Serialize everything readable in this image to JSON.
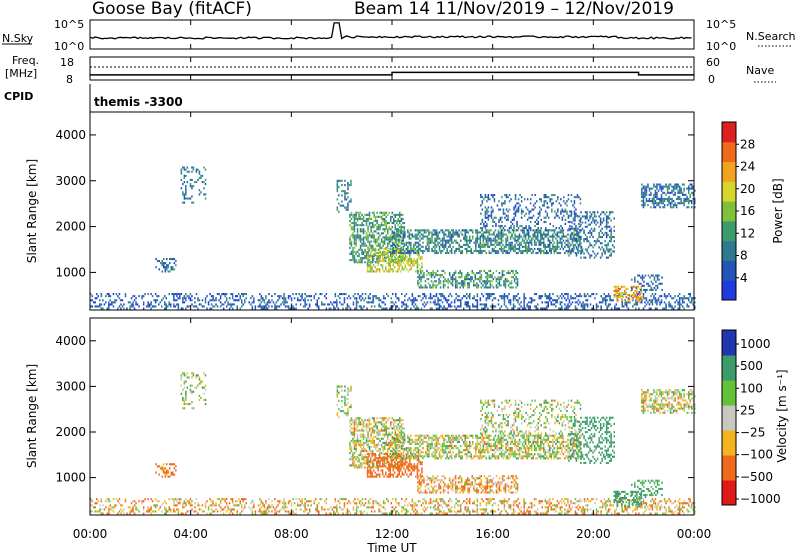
{
  "header": {
    "station": "Goose Bay (fitACF)",
    "beam_date": "Beam 14   11/Nov/2019 – 12/Nov/2019"
  },
  "nsky_panel": {
    "label": "N.Sky",
    "right_label": "N.Search",
    "yticks_left": [
      "10^5",
      "10^0"
    ],
    "yticks_right": [
      "10^5",
      "10^0"
    ]
  },
  "freq_panel": {
    "label_line1": "Freq.",
    "label_line2": "[MHz]",
    "yticks_left": [
      "18",
      "8"
    ],
    "yticks_right": [
      "60",
      "0"
    ],
    "right_label": "Nave"
  },
  "cpid_panel": {
    "label": "CPID",
    "program": "themis -3300"
  },
  "power_panel": {
    "ylabel": "Slant Range [km]",
    "cbar_label": "Power [dB]",
    "cbar_ticks": [
      "28",
      "24",
      "20",
      "16",
      "12",
      "8",
      "4"
    ]
  },
  "velocity_panel": {
    "ylabel": "Slant Range [km]",
    "cbar_label": "Velocity [m s⁻¹]",
    "cbar_ticks": [
      "1000",
      "500",
      "100",
      "25",
      "−25",
      "−100",
      "−500",
      "−1000"
    ]
  },
  "xaxis": {
    "label": "Time UT",
    "ticks": [
      "00:00",
      "04:00",
      "08:00",
      "12:00",
      "16:00",
      "20:00",
      "00:00"
    ]
  },
  "chart_data": {
    "type": "heatmap",
    "title": "Goose Bay (fitACF)   Beam 14   11/Nov/2019 – 12/Nov/2019",
    "xlabel": "Time UT",
    "ylabel": "Slant Range [km]",
    "x_ticks": [
      "00:00",
      "04:00",
      "08:00",
      "12:00",
      "16:00",
      "20:00",
      "00:00"
    ],
    "xlim_hours": [
      0,
      24
    ],
    "ylim": [
      180,
      4500
    ],
    "y_ticks": [
      1000,
      2000,
      3000,
      4000
    ],
    "freq_mhz_segments": [
      {
        "start_h": 0,
        "end_h": 12,
        "value": 10.2
      },
      {
        "start_h": 12,
        "end_h": 21.8,
        "value": 11.3
      },
      {
        "start_h": 21.8,
        "end_h": 24,
        "value": 10.2
      }
    ],
    "power_scale": {
      "min": 0,
      "max": 32,
      "unit": "dB"
    },
    "velocity_scale": {
      "min": -1000,
      "max": 1000,
      "unit": "m/s"
    },
    "echo_regions": [
      {
        "t0": 0.0,
        "t1": 24.0,
        "r0": 190,
        "r1": 550,
        "power": 6,
        "velocity": -60,
        "density": 0.35
      },
      {
        "t0": 3.6,
        "t1": 4.6,
        "r0": 2500,
        "r1": 3300,
        "power": 9,
        "velocity": 20,
        "density": 0.25
      },
      {
        "t0": 2.6,
        "t1": 3.4,
        "r0": 1000,
        "r1": 1300,
        "power": 7,
        "velocity": -200,
        "density": 0.25
      },
      {
        "t0": 9.8,
        "t1": 10.4,
        "r0": 2300,
        "r1": 3000,
        "power": 9,
        "velocity": 30,
        "density": 0.3
      },
      {
        "t0": 10.3,
        "t1": 12.5,
        "r0": 1200,
        "r1": 2300,
        "power": 12,
        "velocity": 0,
        "density": 0.55
      },
      {
        "t0": 11.0,
        "t1": 13.2,
        "r0": 1000,
        "r1": 1500,
        "power": 18,
        "velocity": -300,
        "density": 0.5
      },
      {
        "t0": 12.0,
        "t1": 19.5,
        "r0": 1400,
        "r1": 1900,
        "power": 10,
        "velocity": 10,
        "density": 0.55
      },
      {
        "t0": 13.0,
        "t1": 17.0,
        "r0": 650,
        "r1": 1050,
        "power": 11,
        "velocity": -80,
        "density": 0.5
      },
      {
        "t0": 15.5,
        "t1": 19.5,
        "r0": 1900,
        "r1": 2700,
        "power": 7,
        "velocity": 20,
        "density": 0.25
      },
      {
        "t0": 19.0,
        "t1": 20.8,
        "r0": 1300,
        "r1": 2300,
        "power": 8,
        "velocity": 250,
        "density": 0.3
      },
      {
        "t0": 20.8,
        "t1": 21.9,
        "r0": 350,
        "r1": 700,
        "power": 22,
        "velocity": 200,
        "density": 0.5
      },
      {
        "t0": 21.9,
        "t1": 24.0,
        "r0": 2400,
        "r1": 2900,
        "power": 8,
        "velocity": 0,
        "density": 0.5
      },
      {
        "t0": 21.5,
        "t1": 22.7,
        "r0": 550,
        "r1": 950,
        "power": 6,
        "velocity": 150,
        "density": 0.35
      }
    ]
  }
}
